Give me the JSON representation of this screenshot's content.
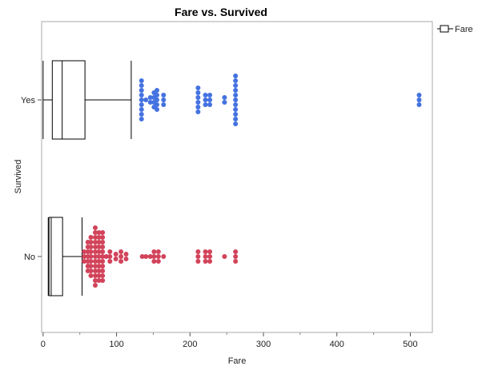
{
  "chart_data": {
    "type": "box_swarm",
    "title": "Fare vs. Survived",
    "xlabel": "Fare",
    "ylabel": "Survived",
    "xlim": [
      -2,
      530
    ],
    "xticks": [
      0,
      100,
      200,
      300,
      400,
      500
    ],
    "categories": [
      "Yes",
      "No"
    ],
    "legend": {
      "label": "Fare",
      "position": "top-right"
    },
    "colors": {
      "Yes": "#4472e0",
      "No": "#d2435a"
    },
    "series": [
      {
        "category": "Yes",
        "box": {
          "min": 0,
          "q1": 12.5,
          "median": 26,
          "q3": 57,
          "whisker_high": 120
        },
        "outliers": [
          {
            "value": 134,
            "count": 9
          },
          {
            "value": 140,
            "count": 1
          },
          {
            "value": 146,
            "count": 2
          },
          {
            "value": 151,
            "count": 4
          },
          {
            "value": 155,
            "count": 5
          },
          {
            "value": 164,
            "count": 3
          },
          {
            "value": 211,
            "count": 6
          },
          {
            "value": 221,
            "count": 3
          },
          {
            "value": 227,
            "count": 3
          },
          {
            "value": 247,
            "count": 2
          },
          {
            "value": 262,
            "count": 11
          },
          {
            "value": 512,
            "count": 3
          }
        ]
      },
      {
        "category": "No",
        "box": {
          "min": 7,
          "q1": 8,
          "median": 11,
          "q3": 26.5,
          "whisker_high": 53
        },
        "outliers": [
          {
            "value": 56,
            "count": 3
          },
          {
            "value": 61,
            "count": 7
          },
          {
            "value": 65,
            "count": 9
          },
          {
            "value": 71,
            "count": 13
          },
          {
            "value": 76,
            "count": 11
          },
          {
            "value": 81,
            "count": 11
          },
          {
            "value": 86,
            "count": 1
          },
          {
            "value": 91,
            "count": 3
          },
          {
            "value": 99,
            "count": 2
          },
          {
            "value": 106,
            "count": 3
          },
          {
            "value": 113,
            "count": 2
          },
          {
            "value": 135,
            "count": 1
          },
          {
            "value": 140,
            "count": 1
          },
          {
            "value": 146,
            "count": 1
          },
          {
            "value": 151,
            "count": 3
          },
          {
            "value": 157,
            "count": 3
          },
          {
            "value": 164,
            "count": 1
          },
          {
            "value": 211,
            "count": 3
          },
          {
            "value": 221,
            "count": 3
          },
          {
            "value": 227,
            "count": 3
          },
          {
            "value": 247,
            "count": 1
          },
          {
            "value": 262,
            "count": 3
          }
        ]
      }
    ]
  }
}
